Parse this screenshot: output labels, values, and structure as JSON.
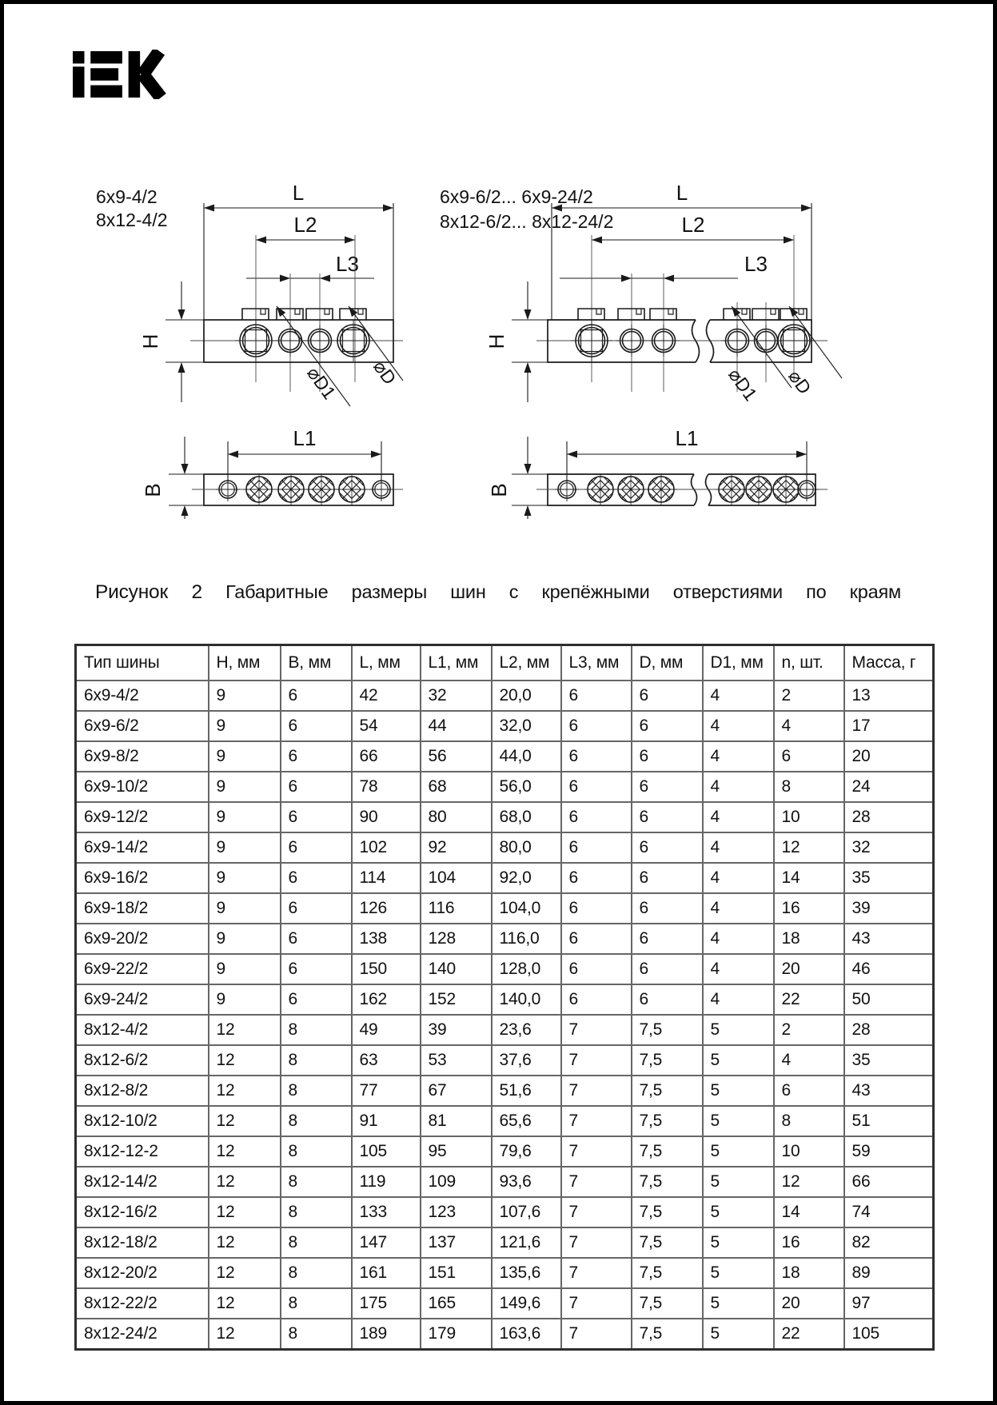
{
  "page": {
    "brand": "IEK",
    "background": "#ffffff",
    "border_color": "#000000"
  },
  "figure": {
    "left": {
      "variants": [
        "6x9-4/2",
        "8x12-4/2"
      ]
    },
    "right": {
      "variants": [
        "6x9-6/2... 6x9-24/2",
        "8x12-6/2... 8x12-24/2"
      ]
    },
    "dims": {
      "L": "L",
      "L1": "L1",
      "L2": "L2",
      "L3": "L3",
      "H": "H",
      "B": "B",
      "D": "⌀D",
      "D1": "⌀D1"
    },
    "caption_label": "Рисунок 2",
    "caption_text": "Габаритные размеры шин с крепёжными отверстиями по краям"
  },
  "table": {
    "columns": [
      "Тип шины",
      "H, мм",
      "B, мм",
      "L, мм",
      "L1, мм",
      "L2, мм",
      "L3, мм",
      "D, мм",
      "D1, мм",
      "n, шт.",
      "Масса, г"
    ],
    "rows": [
      [
        "6x9-4/2",
        "9",
        "6",
        "42",
        "32",
        "20,0",
        "6",
        "6",
        "4",
        "2",
        "13"
      ],
      [
        "6x9-6/2",
        "9",
        "6",
        "54",
        "44",
        "32,0",
        "6",
        "6",
        "4",
        "4",
        "17"
      ],
      [
        "6x9-8/2",
        "9",
        "6",
        "66",
        "56",
        "44,0",
        "6",
        "6",
        "4",
        "6",
        "20"
      ],
      [
        "6x9-10/2",
        "9",
        "6",
        "78",
        "68",
        "56,0",
        "6",
        "6",
        "4",
        "8",
        "24"
      ],
      [
        "6x9-12/2",
        "9",
        "6",
        "90",
        "80",
        "68,0",
        "6",
        "6",
        "4",
        "10",
        "28"
      ],
      [
        "6x9-14/2",
        "9",
        "6",
        "102",
        "92",
        "80,0",
        "6",
        "6",
        "4",
        "12",
        "32"
      ],
      [
        "6x9-16/2",
        "9",
        "6",
        "114",
        "104",
        "92,0",
        "6",
        "6",
        "4",
        "14",
        "35"
      ],
      [
        "6x9-18/2",
        "9",
        "6",
        "126",
        "116",
        "104,0",
        "6",
        "6",
        "4",
        "16",
        "39"
      ],
      [
        "6x9-20/2",
        "9",
        "6",
        "138",
        "128",
        "116,0",
        "6",
        "6",
        "4",
        "18",
        "43"
      ],
      [
        "6x9-22/2",
        "9",
        "6",
        "150",
        "140",
        "128,0",
        "6",
        "6",
        "4",
        "20",
        "46"
      ],
      [
        "6x9-24/2",
        "9",
        "6",
        "162",
        "152",
        "140,0",
        "6",
        "6",
        "4",
        "22",
        "50"
      ],
      [
        "8x12-4/2",
        "12",
        "8",
        "49",
        "39",
        "23,6",
        "7",
        "7,5",
        "5",
        "2",
        "28"
      ],
      [
        "8x12-6/2",
        "12",
        "8",
        "63",
        "53",
        "37,6",
        "7",
        "7,5",
        "5",
        "4",
        "35"
      ],
      [
        "8x12-8/2",
        "12",
        "8",
        "77",
        "67",
        "51,6",
        "7",
        "7,5",
        "5",
        "6",
        "43"
      ],
      [
        "8x12-10/2",
        "12",
        "8",
        "91",
        "81",
        "65,6",
        "7",
        "7,5",
        "5",
        "8",
        "51"
      ],
      [
        "8x12-12-2",
        "12",
        "8",
        "105",
        "95",
        "79,6",
        "7",
        "7,5",
        "5",
        "10",
        "59"
      ],
      [
        "8x12-14/2",
        "12",
        "8",
        "119",
        "109",
        "93,6",
        "7",
        "7,5",
        "5",
        "12",
        "66"
      ],
      [
        "8x12-16/2",
        "12",
        "8",
        "133",
        "123",
        "107,6",
        "7",
        "7,5",
        "5",
        "14",
        "74"
      ],
      [
        "8x12-18/2",
        "12",
        "8",
        "147",
        "137",
        "121,6",
        "7",
        "7,5",
        "5",
        "16",
        "82"
      ],
      [
        "8x12-20/2",
        "12",
        "8",
        "161",
        "151",
        "135,6",
        "7",
        "7,5",
        "5",
        "18",
        "89"
      ],
      [
        "8x12-22/2",
        "12",
        "8",
        "175",
        "165",
        "149,6",
        "7",
        "7,5",
        "5",
        "20",
        "97"
      ],
      [
        "8x12-24/2",
        "12",
        "8",
        "189",
        "179",
        "163,6",
        "7",
        "7,5",
        "5",
        "22",
        "105"
      ]
    ]
  }
}
